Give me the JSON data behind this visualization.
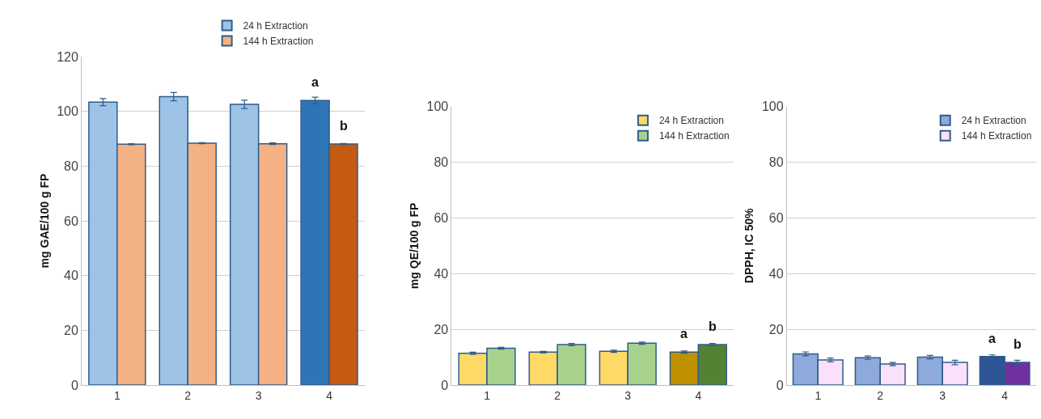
{
  "chart_data": [
    {
      "type": "bar",
      "categories": [
        "1",
        "2",
        "3",
        "4"
      ],
      "ylabel": "mg GAE/100 g FP",
      "ylim": [
        0,
        120
      ],
      "yticks": [
        0,
        20,
        40,
        60,
        80,
        100,
        120
      ],
      "grid": "y",
      "legend": "top",
      "series": [
        {
          "name": "24 h Extraction",
          "colors": [
            "#9dc3e6",
            "#9dc3e6",
            "#9dc3e6",
            "#2e75b6"
          ],
          "values": [
            103.4,
            105.4,
            102.6,
            104
          ],
          "errors": [
            1.3,
            1.5,
            1.5,
            1.2
          ]
        },
        {
          "name": "144 h Extraction",
          "colors": [
            "#f4b183",
            "#f4b183",
            "#f4b183",
            "#c55a11"
          ],
          "values": [
            88,
            88.4,
            88.2,
            88.1
          ],
          "errors": [
            0.2,
            0.2,
            0.3,
            0.2
          ]
        }
      ],
      "annotations": [
        {
          "text": "a",
          "x": "4",
          "y": 104
        },
        {
          "text": "b",
          "x": "4",
          "y": 88.1
        }
      ]
    },
    {
      "type": "bar",
      "categories": [
        "1",
        "2",
        "3",
        "4"
      ],
      "ylabel": "mg QE/100 g FP",
      "ylim": [
        0,
        100
      ],
      "yticks": [
        0,
        20,
        40,
        60,
        80,
        100
      ],
      "grid": "y",
      "legend": "top right",
      "series": [
        {
          "name": "24 h Extraction",
          "colors": [
            "#ffd966",
            "#ffd966",
            "#ffd966",
            "#bf9000"
          ],
          "values": [
            11.4,
            11.8,
            12.1,
            11.8
          ],
          "errors": [
            0.4,
            0.3,
            0.4,
            0.4
          ]
        },
        {
          "name": "144 h Extraction",
          "colors": [
            "#a9d18e",
            "#a9d18e",
            "#a9d18e",
            "#548235"
          ],
          "values": [
            13.2,
            14.5,
            15,
            14.5
          ],
          "errors": [
            0.3,
            0.4,
            0.4,
            0.4
          ]
        }
      ],
      "annotations": [
        {
          "text": "a",
          "x": "4",
          "y": 11.8
        },
        {
          "text": "b",
          "x": "4",
          "y": 14.5
        }
      ]
    },
    {
      "type": "bar",
      "categories": [
        "1",
        "2",
        "3",
        "4"
      ],
      "ylabel": "DPPH, IC 50%",
      "ylim": [
        0,
        100
      ],
      "yticks": [
        0,
        20,
        40,
        60,
        80,
        100
      ],
      "grid": "y",
      "legend": "top right",
      "series": [
        {
          "name": "24 h Extraction",
          "colors": [
            "#8eaadb",
            "#8eaadb",
            "#8eaadb",
            "#2f5597"
          ],
          "values": [
            11.2,
            9.8,
            10,
            10.2
          ],
          "errors": [
            0.7,
            0.6,
            0.6,
            0.6
          ]
        },
        {
          "name": "144 h Extraction",
          "colors": [
            "#fbe0fb",
            "#fbe0fb",
            "#fbe0fb",
            "#7030a0"
          ],
          "values": [
            9,
            7.5,
            8.1,
            8.1
          ],
          "errors": [
            0.7,
            0.6,
            0.8,
            0.8
          ]
        }
      ],
      "annotations": [
        {
          "text": "a",
          "x": "4",
          "y": 10.2
        },
        {
          "text": "b",
          "x": "4",
          "y": 8.1
        }
      ]
    }
  ]
}
